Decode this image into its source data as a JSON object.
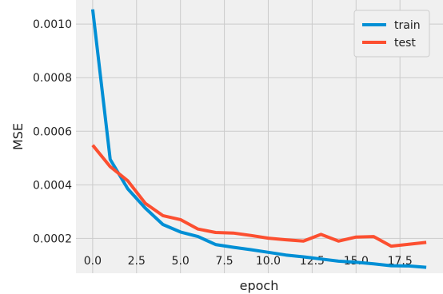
{
  "chart_data": {
    "type": "line",
    "xlabel": "epoch",
    "ylabel": "MSE",
    "xlim": [
      -0.95,
      19.95
    ],
    "ylim": [
      7e-05,
      0.00109
    ],
    "grid": true,
    "legend_position": "top-right",
    "x_ticks": [
      0.0,
      2.5,
      5.0,
      7.5,
      10.0,
      12.5,
      15.0,
      17.5
    ],
    "x_tick_labels": [
      "0.0",
      "2.5",
      "5.0",
      "7.5",
      "10.0",
      "12.5",
      "15.0",
      "17.5"
    ],
    "y_ticks": [
      0.0002,
      0.0004,
      0.0006,
      0.0008,
      0.001
    ],
    "y_tick_labels": [
      "0.0002",
      "0.0004",
      "0.0006",
      "0.0008",
      "0.0010"
    ],
    "x": [
      0,
      1,
      2,
      3,
      4,
      5,
      6,
      7,
      8,
      9,
      10,
      11,
      12,
      13,
      14,
      15,
      16,
      17,
      18,
      19
    ],
    "series": [
      {
        "name": "train",
        "color": "#008fd5",
        "values": [
          0.001055,
          0.000495,
          0.000385,
          0.000313,
          0.000252,
          0.000224,
          0.000207,
          0.000177,
          0.000167,
          0.000158,
          0.000148,
          0.000138,
          0.000131,
          0.000123,
          0.000115,
          0.000111,
          0.000105,
          9.8e-05,
          9.7e-05,
          9.2e-05
        ]
      },
      {
        "name": "test",
        "color": "#fc4f30",
        "values": [
          0.000548,
          0.000468,
          0.000415,
          0.000331,
          0.000285,
          0.00027,
          0.000235,
          0.000222,
          0.00022,
          0.000211,
          0.000201,
          0.000195,
          0.00019,
          0.000215,
          0.00019,
          0.000205,
          0.000207,
          0.000171,
          0.000178,
          0.000185
        ]
      }
    ]
  }
}
